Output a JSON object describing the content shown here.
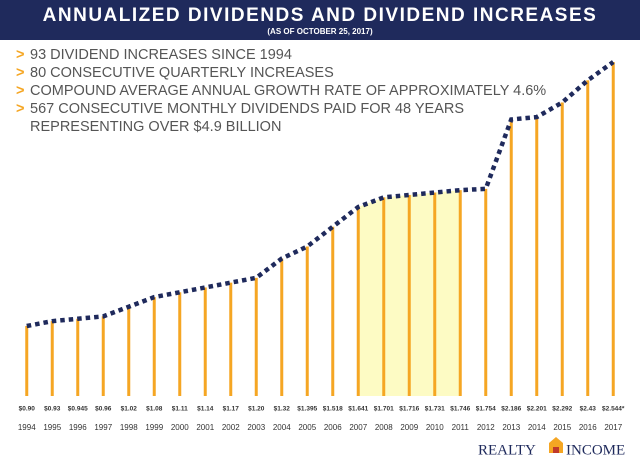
{
  "chart_data": {
    "type": "bar",
    "title": "ANNUALIZED DIVIDENDS AND DIVIDEND INCREASES",
    "subtitle": "(AS OF OCTOBER 25, 2017)",
    "bullets": [
      {
        "marker": ">",
        "lines": [
          "93 DIVIDEND INCREASES SINCE 1994"
        ]
      },
      {
        "marker": ">",
        "lines": [
          "80 CONSECUTIVE QUARTERLY INCREASES"
        ]
      },
      {
        "marker": ">",
        "lines": [
          "COMPOUND AVERAGE ANNUAL GROWTH RATE OF APPROXIMATELY 4.6%"
        ]
      },
      {
        "marker": ">",
        "lines": [
          "567 CONSECUTIVE MONTHLY DIVIDENDS PAID FOR 48 YEARS",
          "REPRESENTING OVER $4.9 BILLION"
        ]
      }
    ],
    "categories": [
      "1994",
      "1995",
      "1996",
      "1997",
      "1998",
      "1999",
      "2000",
      "2001",
      "2002",
      "2003",
      "2004",
      "2005",
      "2006",
      "2007",
      "2008",
      "2009",
      "2010",
      "2011",
      "2012",
      "2013",
      "2014",
      "2015",
      "2016",
      "2017"
    ],
    "values": [
      0.9,
      0.93,
      0.945,
      0.96,
      1.02,
      1.08,
      1.11,
      1.14,
      1.17,
      1.2,
      1.32,
      1.395,
      1.518,
      1.641,
      1.701,
      1.716,
      1.731,
      1.746,
      1.754,
      2.186,
      2.201,
      2.292,
      2.43,
      2.544
    ],
    "value_labels": [
      "$0.90",
      "$0.93",
      "$0.945",
      "$0.96",
      "$1.02",
      "$1.08",
      "$1.11",
      "$1.14",
      "$1.17",
      "$1.20",
      "$1.32",
      "$1.395",
      "$1.518",
      "$1.641",
      "$1.701",
      "$1.716",
      "$1.731",
      "$1.746",
      "$1.754",
      "$2.186",
      "$2.201",
      "$2.292",
      "$2.43",
      "$2.544*"
    ],
    "color": "#f5a623",
    "line_color": "#1f2a5c"
  },
  "logo": {
    "left": "REALTY",
    "right": "INCOME"
  }
}
